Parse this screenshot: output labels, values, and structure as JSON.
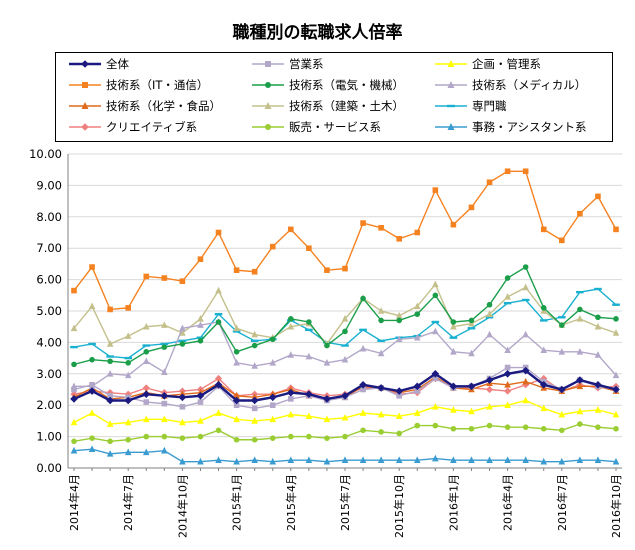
{
  "chart_data": {
    "type": "line",
    "title": "職種別の転職求人倍率",
    "xlabel": "",
    "ylabel": "",
    "ylim": [
      0,
      10
    ],
    "y_ticks": [
      "0.00",
      "1.00",
      "2.00",
      "3.00",
      "4.00",
      "5.00",
      "6.00",
      "7.00",
      "8.00",
      "9.00",
      "10.00"
    ],
    "grid": true,
    "legend_position": "top",
    "categories": [
      "2014年4月",
      "2014年5月",
      "2014年6月",
      "2014年7月",
      "2014年8月",
      "2014年9月",
      "2014年10月",
      "2014年11月",
      "2014年12月",
      "2015年1月",
      "2015年2月",
      "2015年3月",
      "2015年4月",
      "2015年5月",
      "2015年6月",
      "2015年7月",
      "2015年8月",
      "2015年9月",
      "2015年10月",
      "2015年11月",
      "2015年12月",
      "2016年1月",
      "2016年2月",
      "2016年3月",
      "2016年4月",
      "2016年5月",
      "2016年6月",
      "2016年7月",
      "2016年8月",
      "2016年9月",
      "2016年10月"
    ],
    "x_tick_labels": [
      {
        "index": 0,
        "label": "2014年4月"
      },
      {
        "index": 3,
        "label": "2014年7月"
      },
      {
        "index": 6,
        "label": "2014年10月"
      },
      {
        "index": 9,
        "label": "2015年1月"
      },
      {
        "index": 12,
        "label": "2015年4月"
      },
      {
        "index": 15,
        "label": "2015年7月"
      },
      {
        "index": 18,
        "label": "2015年10月"
      },
      {
        "index": 21,
        "label": "2016年1月"
      },
      {
        "index": 24,
        "label": "2016年4月"
      },
      {
        "index": 27,
        "label": "2016年7月"
      },
      {
        "index": 30,
        "label": "2016年10月"
      }
    ],
    "series": [
      {
        "name": "全体",
        "color": "#1a1a80",
        "marker": "diamond",
        "bold": true,
        "values": [
          2.2,
          2.45,
          2.15,
          2.15,
          2.35,
          2.3,
          2.25,
          2.3,
          2.65,
          2.15,
          2.15,
          2.25,
          2.4,
          2.35,
          2.2,
          2.3,
          2.65,
          2.55,
          2.45,
          2.6,
          3.0,
          2.6,
          2.6,
          2.8,
          3.0,
          3.1,
          2.65,
          2.5,
          2.8,
          2.65,
          2.5
        ]
      },
      {
        "name": "営業系",
        "color": "#b2a7c9",
        "marker": "square",
        "values": [
          2.5,
          2.65,
          2.3,
          2.25,
          2.1,
          2.05,
          1.95,
          2.1,
          2.6,
          2.0,
          1.9,
          2.0,
          2.2,
          2.3,
          2.15,
          2.25,
          2.5,
          2.55,
          2.3,
          2.45,
          2.85,
          2.55,
          2.6,
          2.85,
          3.2,
          3.2,
          2.75,
          2.5,
          2.8,
          2.6,
          2.5
        ]
      },
      {
        "name": "企画・管理系",
        "color": "#ffff00",
        "marker": "triangle",
        "values": [
          1.45,
          1.75,
          1.4,
          1.45,
          1.55,
          1.55,
          1.45,
          1.5,
          1.75,
          1.55,
          1.5,
          1.55,
          1.7,
          1.65,
          1.55,
          1.6,
          1.75,
          1.7,
          1.65,
          1.75,
          1.95,
          1.85,
          1.8,
          1.95,
          2.0,
          2.15,
          1.9,
          1.7,
          1.8,
          1.85,
          1.7
        ]
      },
      {
        "name": "技術系（IT・通信）",
        "color": "#f58220",
        "marker": "square",
        "values": [
          5.65,
          6.4,
          5.05,
          5.1,
          6.1,
          6.05,
          5.95,
          6.65,
          7.5,
          6.3,
          6.25,
          7.05,
          7.6,
          7.0,
          6.3,
          6.35,
          7.8,
          7.65,
          7.3,
          7.5,
          8.85,
          7.75,
          8.3,
          9.1,
          9.45,
          9.45,
          7.6,
          7.25,
          8.1,
          8.65,
          7.6
        ]
      },
      {
        "name": "技術系（電気・機械）",
        "color": "#1a9e4a",
        "marker": "circle",
        "values": [
          3.3,
          3.45,
          3.4,
          3.35,
          3.7,
          3.85,
          3.95,
          4.05,
          4.65,
          3.7,
          3.9,
          4.1,
          4.75,
          4.65,
          3.9,
          4.35,
          5.4,
          4.7,
          4.7,
          4.9,
          5.5,
          4.65,
          4.7,
          5.2,
          6.05,
          6.4,
          5.1,
          4.55,
          5.05,
          4.8,
          4.75
        ]
      },
      {
        "name": "技術系（メディカル）",
        "color": "#b2a7c9",
        "marker": "triangle",
        "values": [
          2.6,
          2.6,
          3.0,
          2.95,
          3.4,
          3.05,
          4.45,
          4.55,
          4.65,
          3.35,
          3.25,
          3.35,
          3.6,
          3.55,
          3.35,
          3.45,
          3.8,
          3.65,
          4.1,
          4.15,
          4.35,
          3.7,
          3.65,
          4.25,
          3.75,
          4.25,
          3.75,
          3.7,
          3.7,
          3.6,
          2.95
        ]
      },
      {
        "name": "技術系（化学・食品）",
        "color": "#e06a1c",
        "marker": "triangle",
        "values": [
          2.25,
          2.55,
          2.2,
          2.25,
          2.4,
          2.3,
          2.35,
          2.4,
          2.7,
          2.3,
          2.25,
          2.35,
          2.5,
          2.3,
          2.2,
          2.25,
          2.6,
          2.55,
          2.4,
          2.5,
          2.9,
          2.55,
          2.5,
          2.7,
          2.65,
          2.75,
          2.55,
          2.45,
          2.6,
          2.6,
          2.45
        ]
      },
      {
        "name": "技術系（建築・土木）",
        "color": "#c4c08c",
        "marker": "triangle",
        "values": [
          4.45,
          5.15,
          3.95,
          4.2,
          4.5,
          4.55,
          4.3,
          4.75,
          5.65,
          4.45,
          4.25,
          4.15,
          4.5,
          4.6,
          3.95,
          4.75,
          5.4,
          5.0,
          4.85,
          5.15,
          5.85,
          4.5,
          4.6,
          4.9,
          5.45,
          5.75,
          5.0,
          4.55,
          4.75,
          4.5,
          4.3
        ]
      },
      {
        "name": "専門職",
        "color": "#1ab0d0",
        "marker": "dash",
        "values": [
          3.85,
          3.95,
          3.55,
          3.5,
          3.9,
          3.95,
          4.05,
          4.15,
          4.9,
          4.35,
          4.05,
          4.1,
          4.7,
          4.4,
          4.0,
          3.9,
          4.4,
          4.05,
          4.15,
          4.2,
          4.65,
          4.15,
          4.45,
          4.8,
          5.25,
          5.35,
          4.7,
          4.8,
          5.6,
          5.7,
          5.2
        ]
      },
      {
        "name": "クリエイティブ系",
        "color": "#f08080",
        "marker": "diamond",
        "values": [
          2.35,
          2.45,
          2.4,
          2.35,
          2.55,
          2.4,
          2.45,
          2.5,
          2.85,
          2.3,
          2.35,
          2.35,
          2.55,
          2.4,
          2.3,
          2.35,
          2.55,
          2.55,
          2.35,
          2.4,
          2.85,
          2.55,
          2.55,
          2.5,
          2.45,
          2.65,
          2.85,
          2.45,
          2.65,
          2.55,
          2.6
        ]
      },
      {
        "name": "販売・サービス系",
        "color": "#9acd32",
        "marker": "circle",
        "values": [
          0.85,
          0.95,
          0.85,
          0.9,
          1.0,
          1.0,
          0.95,
          1.0,
          1.2,
          0.9,
          0.9,
          0.95,
          1.0,
          1.0,
          0.95,
          1.0,
          1.2,
          1.15,
          1.1,
          1.35,
          1.35,
          1.25,
          1.25,
          1.35,
          1.3,
          1.3,
          1.25,
          1.2,
          1.4,
          1.3,
          1.25
        ]
      },
      {
        "name": "事務・アシスタント系",
        "color": "#3a9bd0",
        "marker": "triangle",
        "values": [
          0.55,
          0.6,
          0.45,
          0.5,
          0.5,
          0.55,
          0.2,
          0.2,
          0.25,
          0.2,
          0.25,
          0.2,
          0.25,
          0.25,
          0.2,
          0.25,
          0.25,
          0.25,
          0.25,
          0.25,
          0.3,
          0.25,
          0.25,
          0.25,
          0.25,
          0.25,
          0.2,
          0.2,
          0.25,
          0.25,
          0.2
        ]
      }
    ],
    "extra_series_colors": {
      "pink_line": "#e8a0a0",
      "gray_line": "#c8c0a0"
    }
  }
}
